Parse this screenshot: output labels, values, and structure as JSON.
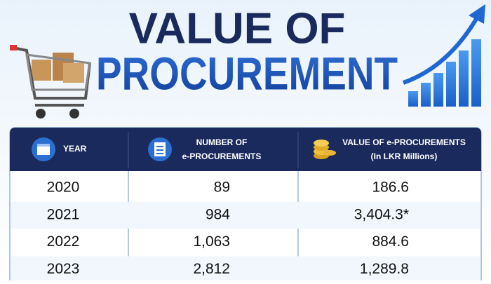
{
  "header": {
    "title": [
      "VALUE OF",
      "PROCUREMENT"
    ]
  },
  "table": {
    "columns": [
      {
        "label": [
          "YEAR"
        ]
      },
      {
        "label": [
          "NUMBER OF",
          "e-PROCUREMENTS"
        ]
      },
      {
        "label": [
          "VALUE OF e-PROCUREMENTS",
          "(In LKR Millions)"
        ]
      }
    ],
    "rows": [
      [
        "2020",
        "89",
        "186.6"
      ],
      [
        "2021",
        "984",
        "3,404.3*"
      ],
      [
        "2022",
        "1,063",
        "884.6"
      ],
      [
        "2023",
        "2,812",
        "1,289.8"
      ]
    ]
  }
}
